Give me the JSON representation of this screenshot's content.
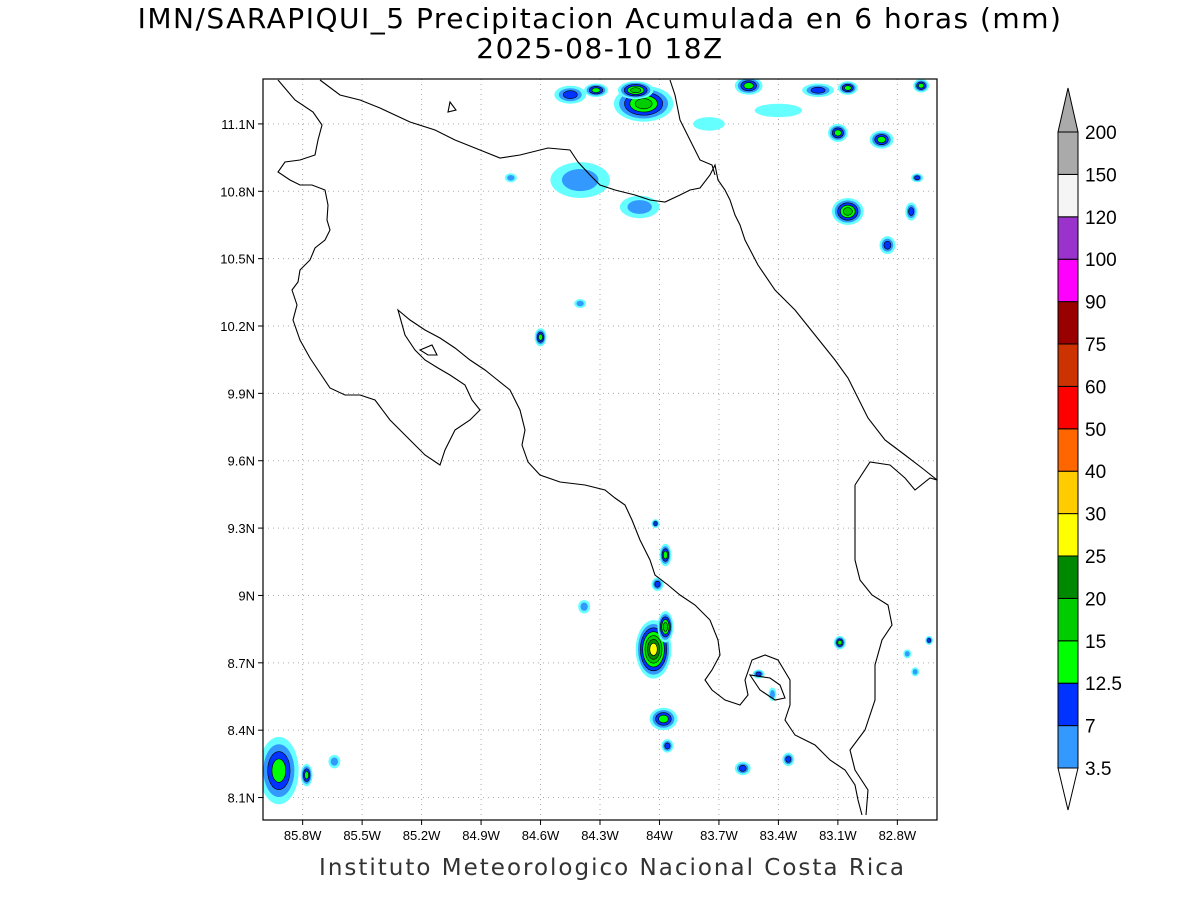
{
  "title_line1": "IMN/SARAPIQUI_5 Precipitacion Acumulada en 6 horas (mm)",
  "title_line2": "2025-08-10 18Z",
  "credit": "Instituto Meteorologico Nacional Costa Rica",
  "map": {
    "lon_range": [
      -86.0,
      -82.6
    ],
    "lat_range": [
      8.0,
      11.3
    ],
    "lon_ticks": [
      {
        "v": -85.8,
        "label": "85.8W"
      },
      {
        "v": -85.5,
        "label": "85.5W"
      },
      {
        "v": -85.2,
        "label": "85.2W"
      },
      {
        "v": -84.9,
        "label": "84.9W"
      },
      {
        "v": -84.6,
        "label": "84.6W"
      },
      {
        "v": -84.3,
        "label": "84.3W"
      },
      {
        "v": -84.0,
        "label": "84W"
      },
      {
        "v": -83.7,
        "label": "83.7W"
      },
      {
        "v": -83.4,
        "label": "83.4W"
      },
      {
        "v": -83.1,
        "label": "83.1W"
      },
      {
        "v": -82.8,
        "label": "82.8W"
      }
    ],
    "lat_ticks": [
      {
        "v": 8.1,
        "label": "8.1N"
      },
      {
        "v": 8.4,
        "label": "8.4N"
      },
      {
        "v": 8.7,
        "label": "8.7N"
      },
      {
        "v": 9.0,
        "label": "9N"
      },
      {
        "v": 9.3,
        "label": "9.3N"
      },
      {
        "v": 9.6,
        "label": "9.6N"
      },
      {
        "v": 9.9,
        "label": "9.9N"
      },
      {
        "v": 10.2,
        "label": "10.2N"
      },
      {
        "v": 10.5,
        "label": "10.5N"
      },
      {
        "v": 10.8,
        "label": "10.8N"
      },
      {
        "v": 11.1,
        "label": "11.1N"
      }
    ],
    "grid": true
  },
  "colorbar": {
    "levels": [
      "3.5",
      "7",
      "12.5",
      "15",
      "20",
      "25",
      "30",
      "40",
      "50",
      "60",
      "75",
      "90",
      "100",
      "120",
      "150",
      "200"
    ],
    "colors": [
      "#66ffff",
      "#3399ff",
      "#0033ff",
      "#00ff00",
      "#00cc00",
      "#008800",
      "#ffff00",
      "#ffcc00",
      "#ff6600",
      "#ff0000",
      "#cc3300",
      "#990000",
      "#ff00ff",
      "#9933cc",
      "#f5f5f5",
      "#aaaaaa"
    ]
  },
  "precip_cells": [
    {
      "lon": -84.03,
      "lat": 8.76,
      "rx": 0.09,
      "ry": 0.13,
      "level": 7
    },
    {
      "lon": -83.97,
      "lat": 8.86,
      "rx": 0.04,
      "ry": 0.07,
      "level": 5
    },
    {
      "lon": -83.98,
      "lat": 8.45,
      "rx": 0.07,
      "ry": 0.05,
      "level": 4
    },
    {
      "lon": -83.96,
      "lat": 8.33,
      "rx": 0.03,
      "ry": 0.03,
      "level": 3
    },
    {
      "lon": -84.01,
      "lat": 9.05,
      "rx": 0.03,
      "ry": 0.03,
      "level": 3
    },
    {
      "lon": -83.97,
      "lat": 9.18,
      "rx": 0.03,
      "ry": 0.05,
      "level": 4
    },
    {
      "lon": -84.02,
      "lat": 9.32,
      "rx": 0.02,
      "ry": 0.02,
      "level": 3
    },
    {
      "lon": -84.38,
      "lat": 8.95,
      "rx": 0.03,
      "ry": 0.03,
      "level": 2
    },
    {
      "lon": -83.35,
      "lat": 8.27,
      "rx": 0.03,
      "ry": 0.03,
      "level": 3
    },
    {
      "lon": -83.58,
      "lat": 8.23,
      "rx": 0.04,
      "ry": 0.03,
      "level": 3
    },
    {
      "lon": -83.43,
      "lat": 8.56,
      "rx": 0.02,
      "ry": 0.03,
      "level": 2
    },
    {
      "lon": -83.5,
      "lat": 8.65,
      "rx": 0.03,
      "ry": 0.02,
      "level": 3
    },
    {
      "lon": -83.09,
      "lat": 8.79,
      "rx": 0.03,
      "ry": 0.03,
      "level": 4
    },
    {
      "lon": -82.64,
      "lat": 8.8,
      "rx": 0.02,
      "ry": 0.02,
      "level": 3
    },
    {
      "lon": -82.75,
      "lat": 8.74,
      "rx": 0.02,
      "ry": 0.02,
      "level": 2
    },
    {
      "lon": -82.71,
      "lat": 8.66,
      "rx": 0.02,
      "ry": 0.02,
      "level": 2
    },
    {
      "lon": -85.92,
      "lat": 8.22,
      "rx": 0.1,
      "ry": 0.15,
      "level": 4
    },
    {
      "lon": -85.78,
      "lat": 8.2,
      "rx": 0.03,
      "ry": 0.05,
      "level": 4
    },
    {
      "lon": -85.64,
      "lat": 8.26,
      "rx": 0.03,
      "ry": 0.03,
      "level": 2
    },
    {
      "lon": -84.6,
      "lat": 10.15,
      "rx": 0.03,
      "ry": 0.04,
      "level": 4
    },
    {
      "lon": -84.4,
      "lat": 10.3,
      "rx": 0.03,
      "ry": 0.02,
      "level": 2
    },
    {
      "lon": -84.08,
      "lat": 11.19,
      "rx": 0.15,
      "ry": 0.08,
      "level": 5
    },
    {
      "lon": -84.12,
      "lat": 11.25,
      "rx": 0.09,
      "ry": 0.04,
      "level": 5
    },
    {
      "lon": -84.32,
      "lat": 11.25,
      "rx": 0.06,
      "ry": 0.03,
      "level": 4
    },
    {
      "lon": -84.45,
      "lat": 11.23,
      "rx": 0.08,
      "ry": 0.04,
      "level": 3
    },
    {
      "lon": -83.55,
      "lat": 11.27,
      "rx": 0.07,
      "ry": 0.04,
      "level": 4
    },
    {
      "lon": -83.2,
      "lat": 11.25,
      "rx": 0.08,
      "ry": 0.03,
      "level": 3
    },
    {
      "lon": -83.05,
      "lat": 11.26,
      "rx": 0.05,
      "ry": 0.03,
      "level": 4
    },
    {
      "lon": -82.68,
      "lat": 11.27,
      "rx": 0.04,
      "ry": 0.03,
      "level": 4
    },
    {
      "lon": -83.1,
      "lat": 11.06,
      "rx": 0.05,
      "ry": 0.04,
      "level": 4
    },
    {
      "lon": -82.88,
      "lat": 11.03,
      "rx": 0.06,
      "ry": 0.04,
      "level": 4
    },
    {
      "lon": -83.05,
      "lat": 10.71,
      "rx": 0.08,
      "ry": 0.06,
      "level": 5
    },
    {
      "lon": -82.73,
      "lat": 10.71,
      "rx": 0.03,
      "ry": 0.04,
      "level": 3
    },
    {
      "lon": -82.7,
      "lat": 10.86,
      "rx": 0.03,
      "ry": 0.02,
      "level": 3
    },
    {
      "lon": -82.85,
      "lat": 10.56,
      "rx": 0.04,
      "ry": 0.04,
      "level": 3
    },
    {
      "lon": -84.4,
      "lat": 10.85,
      "rx": 0.15,
      "ry": 0.08,
      "level": 2
    },
    {
      "lon": -84.1,
      "lat": 10.73,
      "rx": 0.1,
      "ry": 0.05,
      "level": 2
    },
    {
      "lon": -84.75,
      "lat": 10.86,
      "rx": 0.03,
      "ry": 0.02,
      "level": 2
    },
    {
      "lon": -83.4,
      "lat": 11.16,
      "rx": 0.12,
      "ry": 0.03,
      "level": 1
    },
    {
      "lon": -83.75,
      "lat": 11.1,
      "rx": 0.08,
      "ry": 0.03,
      "level": 1
    }
  ]
}
